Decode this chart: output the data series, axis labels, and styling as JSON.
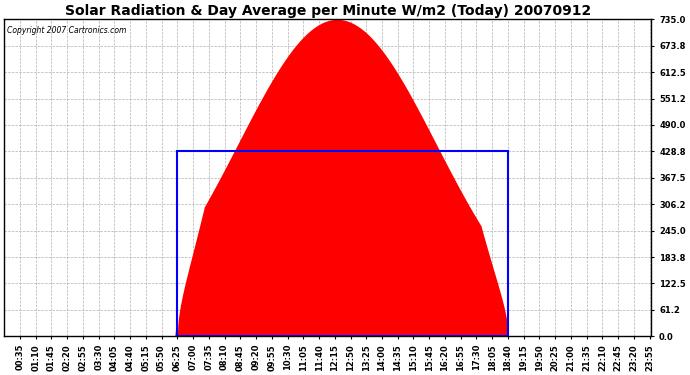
{
  "title": "Solar Radiation & Day Average per Minute W/m2 (Today) 20070912",
  "copyright": "Copyright 2007 Cartronics.com",
  "ymin": 0.0,
  "ymax": 735.0,
  "yticks": [
    0.0,
    61.2,
    122.5,
    183.8,
    245.0,
    306.2,
    367.5,
    428.8,
    490.0,
    551.2,
    612.5,
    673.8,
    735.0
  ],
  "bg_color": "#ffffff",
  "plot_bg_color": "#ffffff",
  "fill_color": "#ff0000",
  "avg_color": "#0000ff",
  "avg_value": 428.8,
  "grid_color": "#aaaaaa",
  "border_color": "#000000",
  "title_fontsize": 10,
  "tick_fontsize": 6.0,
  "sunrise": 385,
  "sunset": 1120,
  "peak_time": 740,
  "peak_val": 735,
  "sigma": 0.3
}
